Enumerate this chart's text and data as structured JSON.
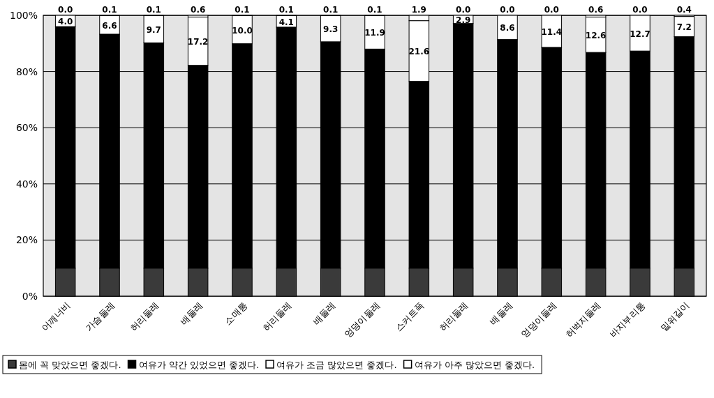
{
  "chart_data": {
    "type": "bar",
    "stacked": true,
    "categories": [
      "어깨너비",
      "가슴둘레",
      "허리둘레",
      "배둘레",
      "소매통",
      "허리둘레",
      "배둘레",
      "엉덩이둘레",
      "스커트폭",
      "허리둘레",
      "배둘레",
      "엉덩이둘레",
      "허벅지둘레",
      "바지부리통",
      "밑위길이"
    ],
    "series": [
      {
        "name": "몸에 꼭 맞았으면 좋겠다.",
        "color": "#3a3a3a",
        "values": [
          10,
          10,
          10,
          10,
          10,
          10,
          10,
          10,
          10,
          10,
          10,
          10,
          10,
          10,
          10
        ],
        "value_labels": [
          null,
          null,
          null,
          null,
          null,
          null,
          null,
          null,
          null,
          null,
          null,
          null,
          null,
          null,
          null
        ]
      },
      {
        "name": "여유가 약간 있었으면 좋겠다.",
        "color": "#000000",
        "values": [
          86.0,
          83.3,
          80.2,
          72.2,
          79.9,
          85.8,
          80.6,
          78.0,
          66.5,
          87.1,
          81.4,
          78.6,
          76.8,
          77.3,
          82.4
        ],
        "value_labels": [
          null,
          null,
          null,
          null,
          null,
          null,
          null,
          null,
          null,
          null,
          null,
          null,
          null,
          null,
          null
        ]
      },
      {
        "name": "여유가 조금 많았으면 좋겠다.",
        "color": "#ffffff",
        "values": [
          4.0,
          6.6,
          9.7,
          17.2,
          10.0,
          4.1,
          9.3,
          11.9,
          21.6,
          2.9,
          8.6,
          11.4,
          12.6,
          12.7,
          7.2
        ],
        "value_labels": [
          "4.0",
          "6.6",
          "9.7",
          "17.2",
          "10.0",
          "4.1",
          "9.3",
          "11.9",
          "21.6",
          "2.9",
          "8.6",
          "11.4",
          "12.6",
          "12.7",
          "7.2"
        ]
      },
      {
        "name": "여유가 아주 많았으면 좋겠다.",
        "color": "#ffffff",
        "values": [
          0.0,
          0.1,
          0.1,
          0.6,
          0.1,
          0.1,
          0.1,
          0.1,
          1.9,
          0.0,
          0.0,
          0.0,
          0.6,
          0.0,
          0.4
        ],
        "value_labels": [
          "0.0",
          "0.1",
          "0.1",
          "0.6",
          "0.1",
          "0.1",
          "0.1",
          "0.1",
          "1.9",
          "0.0",
          "0.0",
          "0.0",
          "0.6",
          "0.0",
          "0.4"
        ]
      }
    ],
    "ylim": [
      0,
      100
    ],
    "yticks": [
      {
        "value": 0,
        "label": "0%"
      },
      {
        "value": 20,
        "label": "20%"
      },
      {
        "value": 40,
        "label": "40%"
      },
      {
        "value": 60,
        "label": "60%"
      },
      {
        "value": 80,
        "label": "80%"
      },
      {
        "value": 100,
        "label": "100%"
      }
    ],
    "grid": "y",
    "legend": "bottom"
  }
}
